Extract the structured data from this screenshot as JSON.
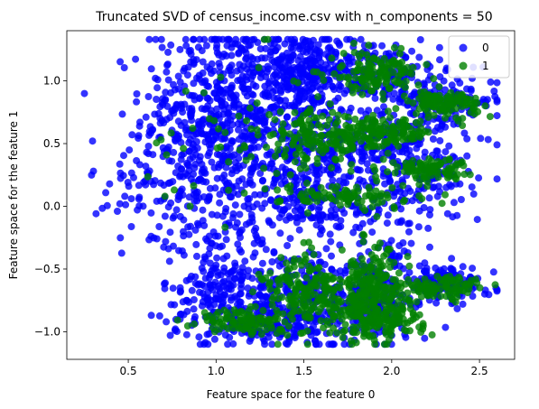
{
  "chart_data": {
    "type": "scatter",
    "title": "Truncated SVD of census_income.csv with n_components = 50",
    "xlabel": "Feature space for the feature 0",
    "ylabel": "Feature space for the feature 1",
    "xlim": [
      0.15,
      2.7
    ],
    "ylim": [
      -1.22,
      1.4
    ],
    "xticks": [
      0.5,
      1.0,
      1.5,
      2.0,
      2.5
    ],
    "xtick_labels": [
      "0.5",
      "1.0",
      "1.5",
      "2.0",
      "2.5"
    ],
    "yticks": [
      -1.0,
      -0.5,
      0.0,
      0.5,
      1.0
    ],
    "ytick_labels": [
      "−1.0",
      "−0.5",
      "0.0",
      "0.5",
      "1.0"
    ],
    "grid": false,
    "legend_position": "top-right",
    "series": [
      {
        "name": "0",
        "color": "#0000ff",
        "clusters": [
          {
            "cx": 1.02,
            "cy": 0.72,
            "sx": 0.22,
            "sy": 0.38,
            "n": 600
          },
          {
            "cx": 1.5,
            "cy": 1.08,
            "sx": 0.14,
            "sy": 0.15,
            "n": 220
          },
          {
            "cx": 1.48,
            "cy": 0.45,
            "sx": 0.16,
            "sy": 0.3,
            "n": 260
          },
          {
            "cx": 1.88,
            "cy": 1.05,
            "sx": 0.2,
            "sy": 0.14,
            "n": 200
          },
          {
            "cx": 2.28,
            "cy": 0.85,
            "sx": 0.17,
            "sy": 0.1,
            "n": 140
          },
          {
            "cx": 2.0,
            "cy": 0.5,
            "sx": 0.22,
            "sy": 0.12,
            "n": 150
          },
          {
            "cx": 2.1,
            "cy": 0.22,
            "sx": 0.2,
            "sy": 0.1,
            "n": 100
          },
          {
            "cx": 1.6,
            "cy": 0.0,
            "sx": 0.35,
            "sy": 0.12,
            "n": 160
          },
          {
            "cx": 0.7,
            "cy": 0.15,
            "sx": 0.2,
            "sy": 0.2,
            "n": 80
          },
          {
            "cx": 1.05,
            "cy": -0.72,
            "sx": 0.18,
            "sy": 0.18,
            "n": 220
          },
          {
            "cx": 1.5,
            "cy": -0.75,
            "sx": 0.15,
            "sy": 0.2,
            "n": 220
          },
          {
            "cx": 1.9,
            "cy": -0.7,
            "sx": 0.16,
            "sy": 0.2,
            "n": 220
          },
          {
            "cx": 2.3,
            "cy": -0.62,
            "sx": 0.14,
            "sy": 0.08,
            "n": 120
          },
          {
            "cx": 1.3,
            "cy": -0.95,
            "sx": 0.2,
            "sy": 0.06,
            "n": 80
          },
          {
            "cx": 1.0,
            "cy": -0.25,
            "sx": 0.25,
            "sy": 0.15,
            "n": 80
          }
        ]
      },
      {
        "name": "1",
        "color": "#007f00",
        "clusters": [
          {
            "cx": 1.55,
            "cy": 0.52,
            "sx": 0.14,
            "sy": 0.12,
            "n": 110
          },
          {
            "cx": 1.92,
            "cy": 0.58,
            "sx": 0.16,
            "sy": 0.06,
            "n": 160
          },
          {
            "cx": 1.9,
            "cy": 1.06,
            "sx": 0.13,
            "sy": 0.08,
            "n": 130
          },
          {
            "cx": 2.3,
            "cy": 0.82,
            "sx": 0.1,
            "sy": 0.05,
            "n": 110
          },
          {
            "cx": 2.2,
            "cy": 0.3,
            "sx": 0.12,
            "sy": 0.04,
            "n": 100
          },
          {
            "cx": 1.78,
            "cy": 0.08,
            "sx": 0.2,
            "sy": 0.05,
            "n": 90
          },
          {
            "cx": 1.55,
            "cy": -0.72,
            "sx": 0.14,
            "sy": 0.16,
            "n": 220
          },
          {
            "cx": 1.9,
            "cy": -0.72,
            "sx": 0.1,
            "sy": 0.18,
            "n": 240
          },
          {
            "cx": 1.15,
            "cy": -0.92,
            "sx": 0.12,
            "sy": 0.05,
            "n": 90
          },
          {
            "cx": 2.3,
            "cy": -0.65,
            "sx": 0.12,
            "sy": 0.05,
            "n": 90
          },
          {
            "cx": 1.95,
            "cy": -0.9,
            "sx": 0.12,
            "sy": 0.05,
            "n": 90
          },
          {
            "cx": 1.1,
            "cy": 0.6,
            "sx": 0.25,
            "sy": 0.3,
            "n": 50
          }
        ]
      }
    ]
  }
}
